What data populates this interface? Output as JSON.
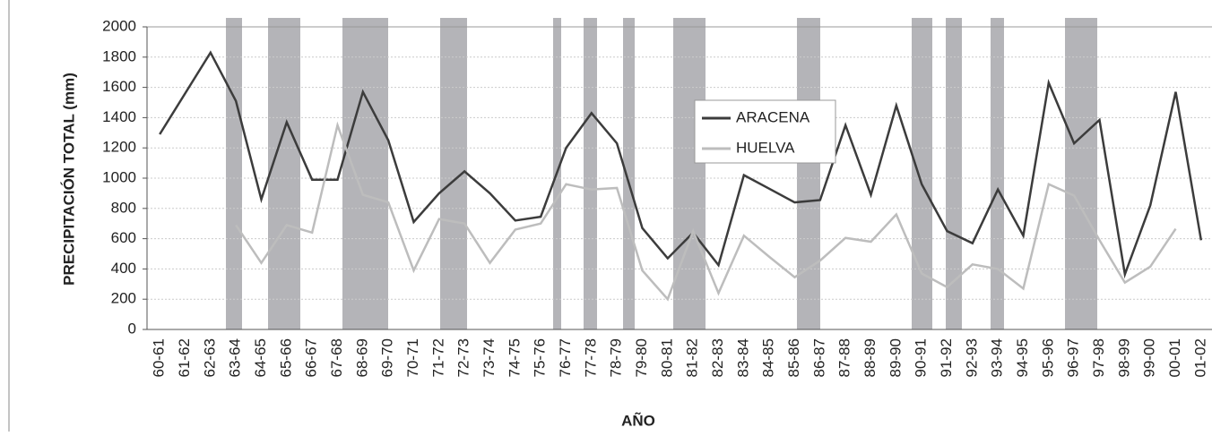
{
  "chart_data": {
    "type": "line",
    "y_label": "PRECIPITACIÓN TOTAL (mm)",
    "x_label": "AÑO",
    "categories": [
      "60-61",
      "61-62",
      "62-63",
      "63-64",
      "64-65",
      "65-66",
      "66-67",
      "67-68",
      "68-69",
      "69-70",
      "70-71",
      "71-72",
      "72-73",
      "73-74",
      "74-75",
      "75-76",
      "76-77",
      "77-78",
      "78-79",
      "79-80",
      "80-81",
      "81-82",
      "82-83",
      "83-84",
      "84-85",
      "85-86",
      "86-87",
      "87-88",
      "88-89",
      "89-90",
      "90-91",
      "91-92",
      "92-93",
      "93-94",
      "94-95",
      "95-96",
      "96-97",
      "97-98",
      "98-99",
      "99-00",
      "00-01",
      "01-02"
    ],
    "series": [
      {
        "name": "ARACENA",
        "color": "#3c3c3c",
        "values": [
          1290,
          1560,
          1830,
          1510,
          860,
          1370,
          990,
          990,
          1570,
          1250,
          710,
          900,
          1045,
          900,
          720,
          745,
          1200,
          1430,
          1230,
          670,
          470,
          640,
          425,
          1020,
          930,
          840,
          855,
          1350,
          890,
          1480,
          960,
          650,
          570,
          925,
          620,
          1630,
          1230,
          1385,
          365,
          820,
          1570,
          590
        ]
      },
      {
        "name": "HUELVA",
        "color": "#bdbdbd",
        "values": [
          null,
          null,
          null,
          690,
          440,
          690,
          640,
          1350,
          890,
          840,
          390,
          730,
          700,
          440,
          660,
          700,
          960,
          925,
          935,
          390,
          200,
          650,
          240,
          620,
          480,
          345,
          455,
          605,
          580,
          760,
          370,
          280,
          430,
          400,
          270,
          960,
          885,
          590,
          310,
          415,
          665,
          null
        ]
      }
    ],
    "ylim": [
      0,
      2000
    ],
    "yticks": [
      0,
      200,
      400,
      600,
      800,
      1000,
      1200,
      1400,
      1600,
      1800,
      2000
    ],
    "grid": true,
    "legend": "upper center"
  }
}
